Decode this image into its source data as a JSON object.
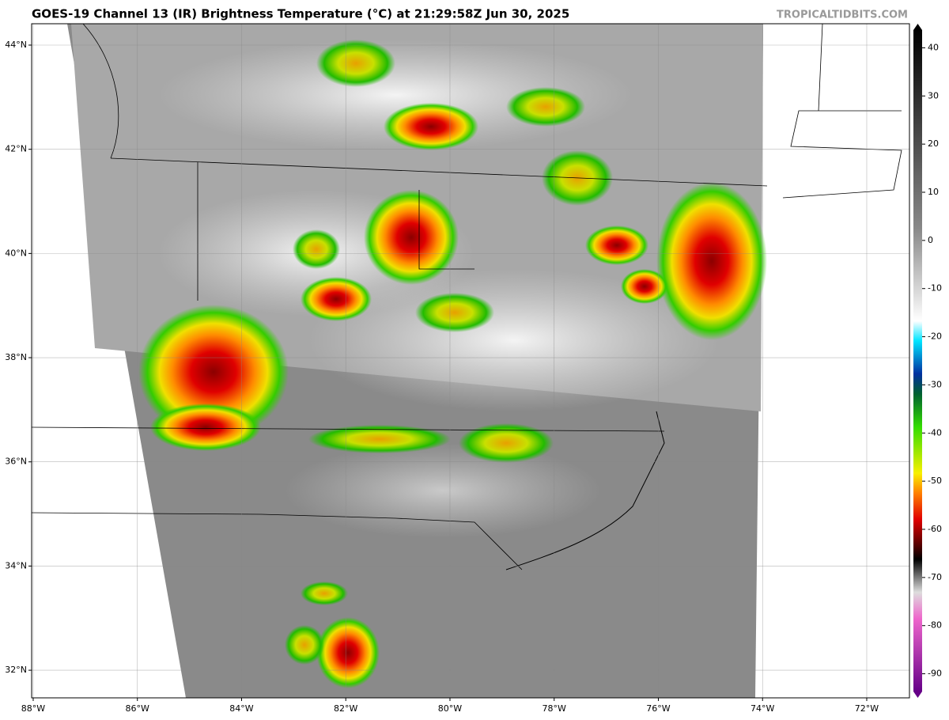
{
  "header": {
    "title": "GOES-19 Channel 13 (IR) Brightness Temperature (°C) at 21:29:58Z Jun 30, 2025",
    "credit": "TROPICALTIDBITS.COM"
  },
  "map": {
    "xlim": [
      -88.03,
      -71.18
    ],
    "ylim": [
      31.47,
      44.41
    ],
    "xticks": [
      {
        "value": -88,
        "label": "88°W"
      },
      {
        "value": -86,
        "label": "86°W"
      },
      {
        "value": -84,
        "label": "84°W"
      },
      {
        "value": -82,
        "label": "82°W"
      },
      {
        "value": -80,
        "label": "80°W"
      },
      {
        "value": -78,
        "label": "78°W"
      },
      {
        "value": -76,
        "label": "76°W"
      },
      {
        "value": -74,
        "label": "74°W"
      },
      {
        "value": -72,
        "label": "72°W"
      }
    ],
    "yticks": [
      {
        "value": 44,
        "label": "44°N"
      },
      {
        "value": 42,
        "label": "42°N"
      },
      {
        "value": 40,
        "label": "40°N"
      },
      {
        "value": 38,
        "label": "38°N"
      },
      {
        "value": 36,
        "label": "36°N"
      },
      {
        "value": 34,
        "label": "34°N"
      },
      {
        "value": 32,
        "label": "32°N"
      }
    ]
  },
  "colorbar": {
    "lim": [
      -95,
      45
    ],
    "ticks": [
      40,
      30,
      20,
      10,
      0,
      -10,
      -20,
      -30,
      -40,
      -50,
      -60,
      -70,
      -80,
      -90
    ]
  }
}
